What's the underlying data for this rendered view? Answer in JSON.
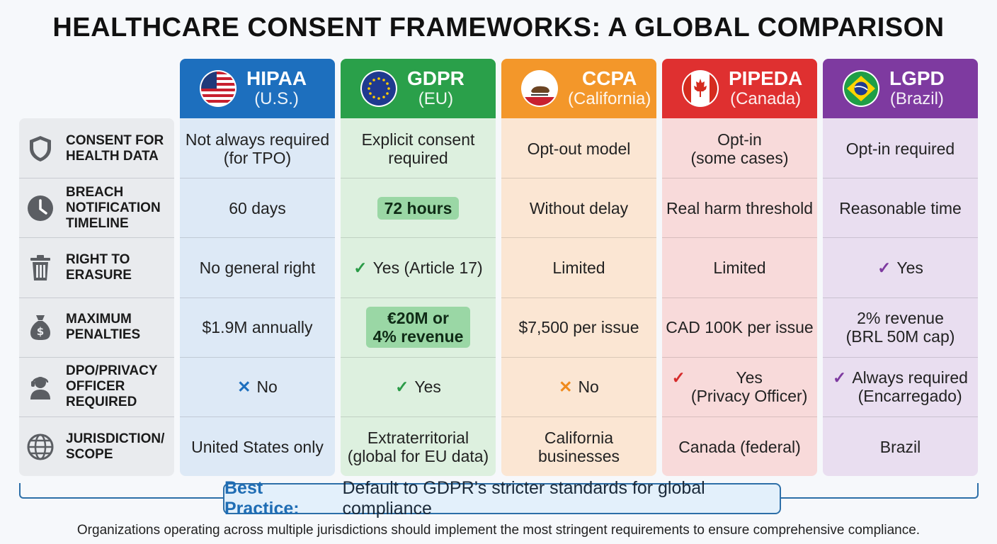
{
  "title": "HEALTHCARE CONSENT FRAMEWORKS: A GLOBAL COMPARISON",
  "rows": [
    {
      "label": "CONSENT FOR\nHEALTH DATA",
      "icon": "shield-icon"
    },
    {
      "label": "BREACH\nNOTIFICATION\nTIMELINE",
      "icon": "clock-icon"
    },
    {
      "label": "RIGHT TO\nERASURE",
      "icon": "trash-icon"
    },
    {
      "label": "MAXIMUM\nPENALTIES",
      "icon": "money-bag-icon"
    },
    {
      "label": "DPO/PRIVACY\nOFFICER\nREQUIRED",
      "icon": "headset-person-icon"
    },
    {
      "label": "JURISDICTION/\nSCOPE",
      "icon": "globe-icon"
    }
  ],
  "columns": [
    {
      "name": "HIPAA",
      "sub": "(U.S.)",
      "flag": "us-flag-icon",
      "header_color": "#1d6fbe",
      "body_color": "#dde9f6",
      "cells": [
        {
          "text": "Not always required\n(for TPO)"
        },
        {
          "text": "60 days"
        },
        {
          "text": "No general right"
        },
        {
          "text": "$1.9M annually"
        },
        {
          "text": "No",
          "mark": "✕",
          "mark_color": "#1d6fbe"
        },
        {
          "text": "United States only"
        }
      ]
    },
    {
      "name": "GDPR",
      "sub": "(EU)",
      "flag": "eu-flag-icon",
      "header_color": "#2aa04a",
      "body_color": "#ddf0df",
      "cells": [
        {
          "text": "Explicit consent\nrequired"
        },
        {
          "text": "72 hours",
          "highlight": true
        },
        {
          "text": "Yes (Article 17)",
          "mark": "✓",
          "mark_color": "#2a9b47"
        },
        {
          "text": "€20M or\n4% revenue",
          "highlight": true
        },
        {
          "text": "Yes",
          "mark": "✓",
          "mark_color": "#2a9b47"
        },
        {
          "text": "Extraterritorial\n(global for EU data)"
        }
      ]
    },
    {
      "name": "CCPA",
      "sub": "(California)",
      "flag": "california-flag-icon",
      "header_color": "#f3972a",
      "body_color": "#fbe6d3",
      "cells": [
        {
          "text": "Opt-out model"
        },
        {
          "text": "Without delay"
        },
        {
          "text": "Limited"
        },
        {
          "text": "$7,500 per issue"
        },
        {
          "text": "No",
          "mark": "✕",
          "mark_color": "#f08a1c"
        },
        {
          "text": "California\nbusinesses"
        }
      ]
    },
    {
      "name": "PIPEDA",
      "sub": "(Canada)",
      "flag": "canada-flag-icon",
      "header_color": "#df3030",
      "body_color": "#f8dada",
      "cells": [
        {
          "text": "Opt-in\n(some cases)"
        },
        {
          "text": "Real harm threshold"
        },
        {
          "text": "Limited"
        },
        {
          "text": "CAD 100K per issue"
        },
        {
          "text": "Yes\n(Privacy Officer)",
          "mark": "✓",
          "mark_color": "#d62b2b"
        },
        {
          "text": "Canada (federal)"
        }
      ]
    },
    {
      "name": "LGPD",
      "sub": "(Brazil)",
      "flag": "brazil-flag-icon",
      "header_color": "#7e3aa0",
      "body_color": "#e9def0",
      "cells": [
        {
          "text": "Opt-in required"
        },
        {
          "text": "Reasonable time"
        },
        {
          "text": "Yes",
          "mark": "✓",
          "mark_color": "#7e3aa0"
        },
        {
          "text": "2% revenue\n(BRL 50M cap)"
        },
        {
          "text": "Always required\n(Encarregado)",
          "mark": "✓",
          "mark_color": "#7e3aa0"
        },
        {
          "text": "Brazil"
        }
      ]
    }
  ],
  "best_practice": {
    "label": "Best Practice:",
    "text": "Default to GDPR’s stricter standards for global compliance"
  },
  "footer": "Organizations operating across multiple jurisdictions should implement the most stringent requirements to ensure comprehensive compliance."
}
